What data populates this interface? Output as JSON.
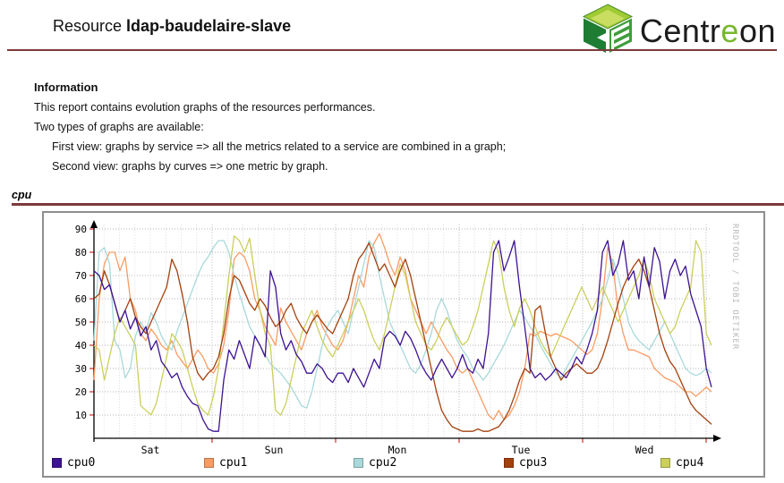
{
  "header": {
    "title_prefix": "Resource ",
    "resource_name": "ldap-baudelaire-slave",
    "logo": {
      "text_pre": "Centr",
      "text_green": "e",
      "text_post": "on"
    }
  },
  "info": {
    "heading": "Information",
    "line1": "This report contains evolution graphs of the resources performances.",
    "line2": "Two types of graphs are available:",
    "indent1": "First view: graphs by service => all the metrics related to a service are combined in a graph;",
    "indent2": "Second view: graphs by curves => one metric by graph."
  },
  "section": {
    "label": "cpu"
  },
  "colors": {
    "rule": "#7d3a3a",
    "graph_border": "#8f8f8f",
    "grid_major": "#b5b5b5",
    "grid_minor": "#dcdcdc",
    "tick_red": "#cc0000",
    "watermark": "#b8b8b8"
  },
  "chart_data": {
    "type": "line",
    "title": "cpu",
    "watermark": "RRDTOOL / TOBI OETIKER",
    "ylim": [
      0,
      93
    ],
    "yticks": [
      10,
      20,
      30,
      40,
      50,
      60,
      70,
      80,
      90
    ],
    "x_day_labels": [
      "Sat",
      "Sun",
      "Mon",
      "Tue",
      "Wed"
    ],
    "points_per_day": 24,
    "legend_position": "bottom",
    "grid": true,
    "series": [
      {
        "name": "cpu0",
        "color": "#3d1293",
        "values": [
          72,
          70,
          64,
          66,
          58,
          50,
          55,
          47,
          52,
          44,
          48,
          38,
          42,
          33,
          30,
          26,
          28,
          22,
          18,
          15,
          14,
          8,
          4,
          3,
          3,
          25,
          38,
          34,
          42,
          36,
          30,
          44,
          40,
          35,
          72,
          65,
          45,
          38,
          42,
          36,
          33,
          28,
          28,
          32,
          30,
          26,
          24,
          28,
          28,
          24,
          30,
          26,
          22,
          28,
          34,
          30,
          43,
          46,
          44,
          40,
          46,
          43,
          38,
          32,
          28,
          25,
          30,
          34,
          30,
          26,
          30,
          36,
          30,
          28,
          34,
          30,
          45,
          80,
          85,
          72,
          78,
          85,
          65,
          48,
          30,
          26,
          28,
          25,
          27,
          30,
          28,
          26,
          30,
          35,
          32,
          38,
          45,
          55,
          80,
          85,
          70,
          75,
          85,
          68,
          72,
          60,
          78,
          65,
          82,
          76,
          60,
          72,
          77,
          70,
          74,
          62,
          55,
          48,
          30,
          22
        ]
      },
      {
        "name": "cpu1",
        "color": "#fa9b64",
        "values": [
          25,
          60,
          75,
          80,
          80,
          72,
          78,
          60,
          55,
          45,
          42,
          47,
          44,
          40,
          38,
          42,
          36,
          33,
          30,
          34,
          38,
          35,
          30,
          28,
          32,
          40,
          55,
          77,
          80,
          78,
          72,
          60,
          55,
          48,
          44,
          40,
          56,
          50,
          46,
          42,
          38,
          45,
          50,
          55,
          48,
          44,
          40,
          38,
          42,
          50,
          60,
          70,
          65,
          78,
          84,
          88,
          82,
          75,
          70,
          78,
          72,
          60,
          55,
          50,
          45,
          50,
          46,
          42,
          38,
          35,
          30,
          28,
          30,
          25,
          20,
          15,
          10,
          8,
          12,
          8,
          10,
          14,
          20,
          30,
          45,
          44,
          46,
          45,
          44,
          45,
          44,
          43,
          42,
          40,
          38,
          36,
          38,
          45,
          60,
          82,
          75,
          55,
          45,
          38,
          38,
          37,
          36,
          35,
          30,
          28,
          26,
          25,
          24,
          22,
          20,
          20,
          18,
          20,
          22,
          20
        ]
      },
      {
        "name": "cpu2",
        "color": "#a9d9da",
        "values": [
          42,
          80,
          82,
          75,
          42,
          38,
          26,
          30,
          44,
          50,
          46,
          54,
          50,
          44,
          40,
          38,
          46,
          52,
          58,
          64,
          70,
          75,
          78,
          82,
          85,
          85,
          80,
          70,
          62,
          55,
          48,
          44,
          40,
          36,
          32,
          30,
          28,
          25,
          22,
          18,
          14,
          13,
          20,
          30,
          40,
          48,
          52,
          55,
          50,
          45,
          55,
          65,
          75,
          85,
          82,
          70,
          60,
          50,
          45,
          40,
          35,
          30,
          28,
          32,
          38,
          45,
          55,
          60,
          55,
          48,
          42,
          38,
          35,
          30,
          28,
          25,
          28,
          32,
          36,
          40,
          45,
          50,
          55,
          52,
          48,
          45,
          40,
          36,
          32,
          28,
          26,
          30,
          34,
          38,
          42,
          46,
          50,
          55,
          60,
          68,
          77,
          70,
          60,
          50,
          45,
          42,
          40,
          38,
          42,
          46,
          50,
          45,
          40,
          35,
          30,
          28,
          27,
          28,
          30,
          28
        ]
      },
      {
        "name": "cpu3",
        "color": "#a3410e",
        "values": [
          60,
          62,
          72,
          66,
          58,
          50,
          55,
          60,
          52,
          48,
          45,
          50,
          55,
          60,
          65,
          77,
          72,
          62,
          50,
          35,
          28,
          25,
          28,
          30,
          35,
          45,
          60,
          70,
          68,
          63,
          58,
          55,
          60,
          57,
          52,
          48,
          50,
          55,
          58,
          52,
          48,
          45,
          50,
          53,
          50,
          47,
          45,
          50,
          55,
          60,
          70,
          77,
          80,
          84,
          78,
          72,
          75,
          70,
          65,
          72,
          77,
          70,
          60,
          50,
          40,
          30,
          20,
          12,
          8,
          5,
          4,
          3,
          3,
          3,
          4,
          3,
          3,
          4,
          5,
          8,
          12,
          18,
          25,
          30,
          28,
          55,
          57,
          45,
          35,
          30,
          25,
          28,
          30,
          32,
          30,
          28,
          28,
          30,
          35,
          42,
          50,
          58,
          65,
          70,
          74,
          77,
          72,
          65,
          55,
          45,
          38,
          33,
          30,
          25,
          20,
          15,
          12,
          10,
          8,
          6
        ]
      },
      {
        "name": "cpu4",
        "color": "#cbcf5c",
        "values": [
          40,
          38,
          25,
          35,
          45,
          52,
          48,
          44,
          40,
          14,
          12,
          10,
          15,
          25,
          35,
          45,
          42,
          38,
          30,
          22,
          15,
          12,
          10,
          18,
          30,
          50,
          70,
          87,
          85,
          80,
          86,
          70,
          55,
          45,
          40,
          12,
          10,
          15,
          25,
          35,
          45,
          50,
          55,
          48,
          42,
          38,
          35,
          40,
          45,
          50,
          55,
          60,
          55,
          48,
          42,
          38,
          45,
          55,
          65,
          75,
          70,
          60,
          50,
          45,
          40,
          38,
          42,
          48,
          52,
          48,
          44,
          40,
          42,
          48,
          55,
          65,
          75,
          85,
          80,
          65,
          55,
          48,
          56,
          60,
          55,
          48,
          42,
          38,
          35,
          40,
          45,
          50,
          55,
          60,
          65,
          60,
          55,
          60,
          65,
          60,
          55,
          50,
          55,
          60,
          65,
          70,
          77,
          70,
          60,
          55,
          50,
          45,
          48,
          55,
          60,
          65,
          85,
          80,
          45,
          40
        ]
      }
    ]
  }
}
